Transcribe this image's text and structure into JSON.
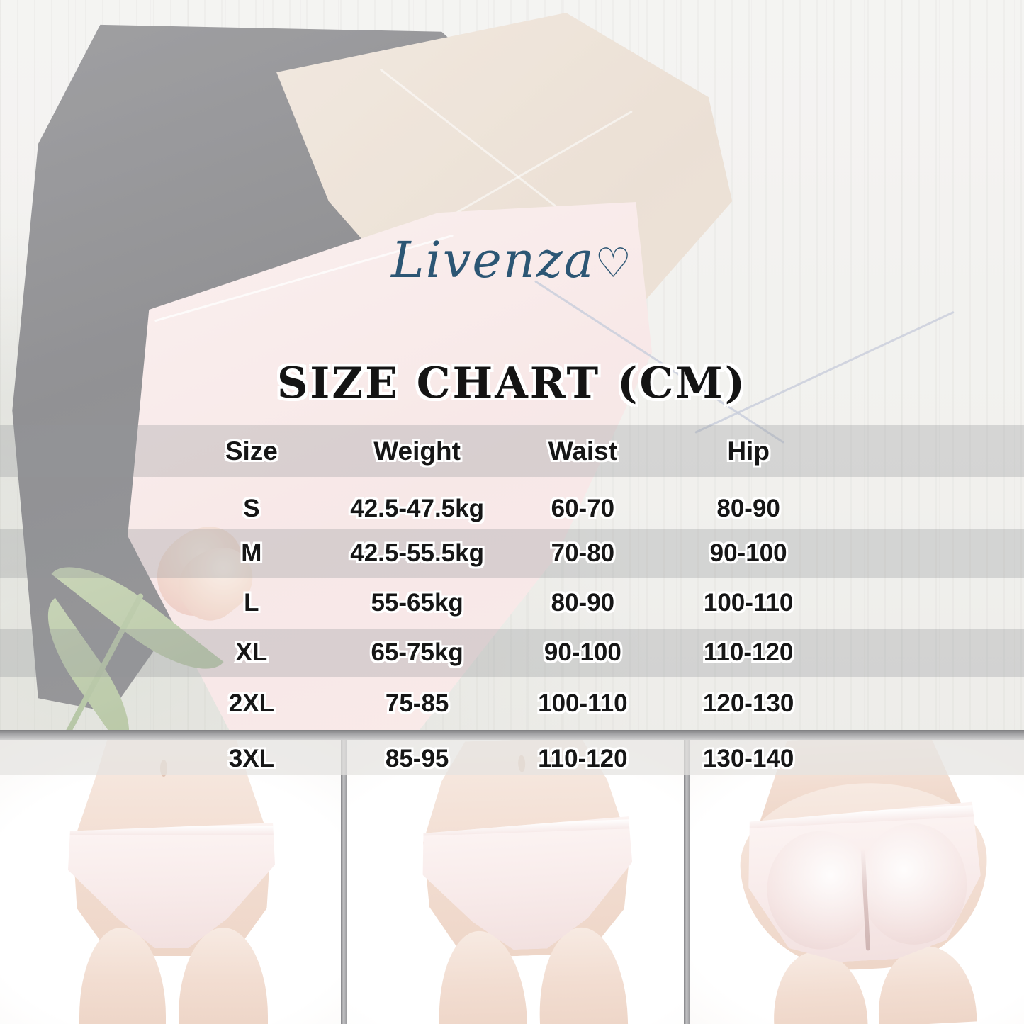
{
  "brand": {
    "name": "Livenza",
    "heart_glyph": "♡",
    "logo_color": "#2c5674"
  },
  "title": {
    "text": "SIZE CHART (CM)"
  },
  "size_table": {
    "headers": [
      "Size",
      "Weight",
      "Waist",
      "Hip"
    ],
    "rows": [
      [
        "S",
        "42.5-47.5kg",
        "60-70",
        "80-90"
      ],
      [
        "M",
        "42.5-55.5kg",
        "70-80",
        "90-100"
      ],
      [
        "L",
        "55-65kg",
        "80-90",
        "100-110"
      ],
      [
        "XL",
        "65-75kg",
        "90-100",
        "110-120"
      ],
      [
        "2XL",
        "75-85",
        "100-110",
        "120-130"
      ],
      [
        "3XL",
        "85-95",
        "110-120",
        "130-140"
      ]
    ]
  },
  "chart_data": {
    "type": "table",
    "title": "SIZE CHART (CM)",
    "units": "cm",
    "columns": [
      "Size",
      "Weight",
      "Waist",
      "Hip"
    ],
    "rows": [
      [
        "S",
        "42.5-47.5kg",
        "60-70",
        "80-90"
      ],
      [
        "M",
        "42.5-55.5kg",
        "70-80",
        "90-100"
      ],
      [
        "L",
        "55-65kg",
        "80-90",
        "100-110"
      ],
      [
        "XL",
        "65-75kg",
        "90-100",
        "110-120"
      ],
      [
        "2XL",
        "75-85",
        "100-110",
        "120-130"
      ],
      [
        "3XL",
        "85-95",
        "110-120",
        "130-140"
      ]
    ]
  },
  "colors": {
    "logo": "#2c5674",
    "table_text": "#161616",
    "row_stripe": "rgba(146,148,151,0.30)",
    "divider": "#9a9a9e"
  }
}
